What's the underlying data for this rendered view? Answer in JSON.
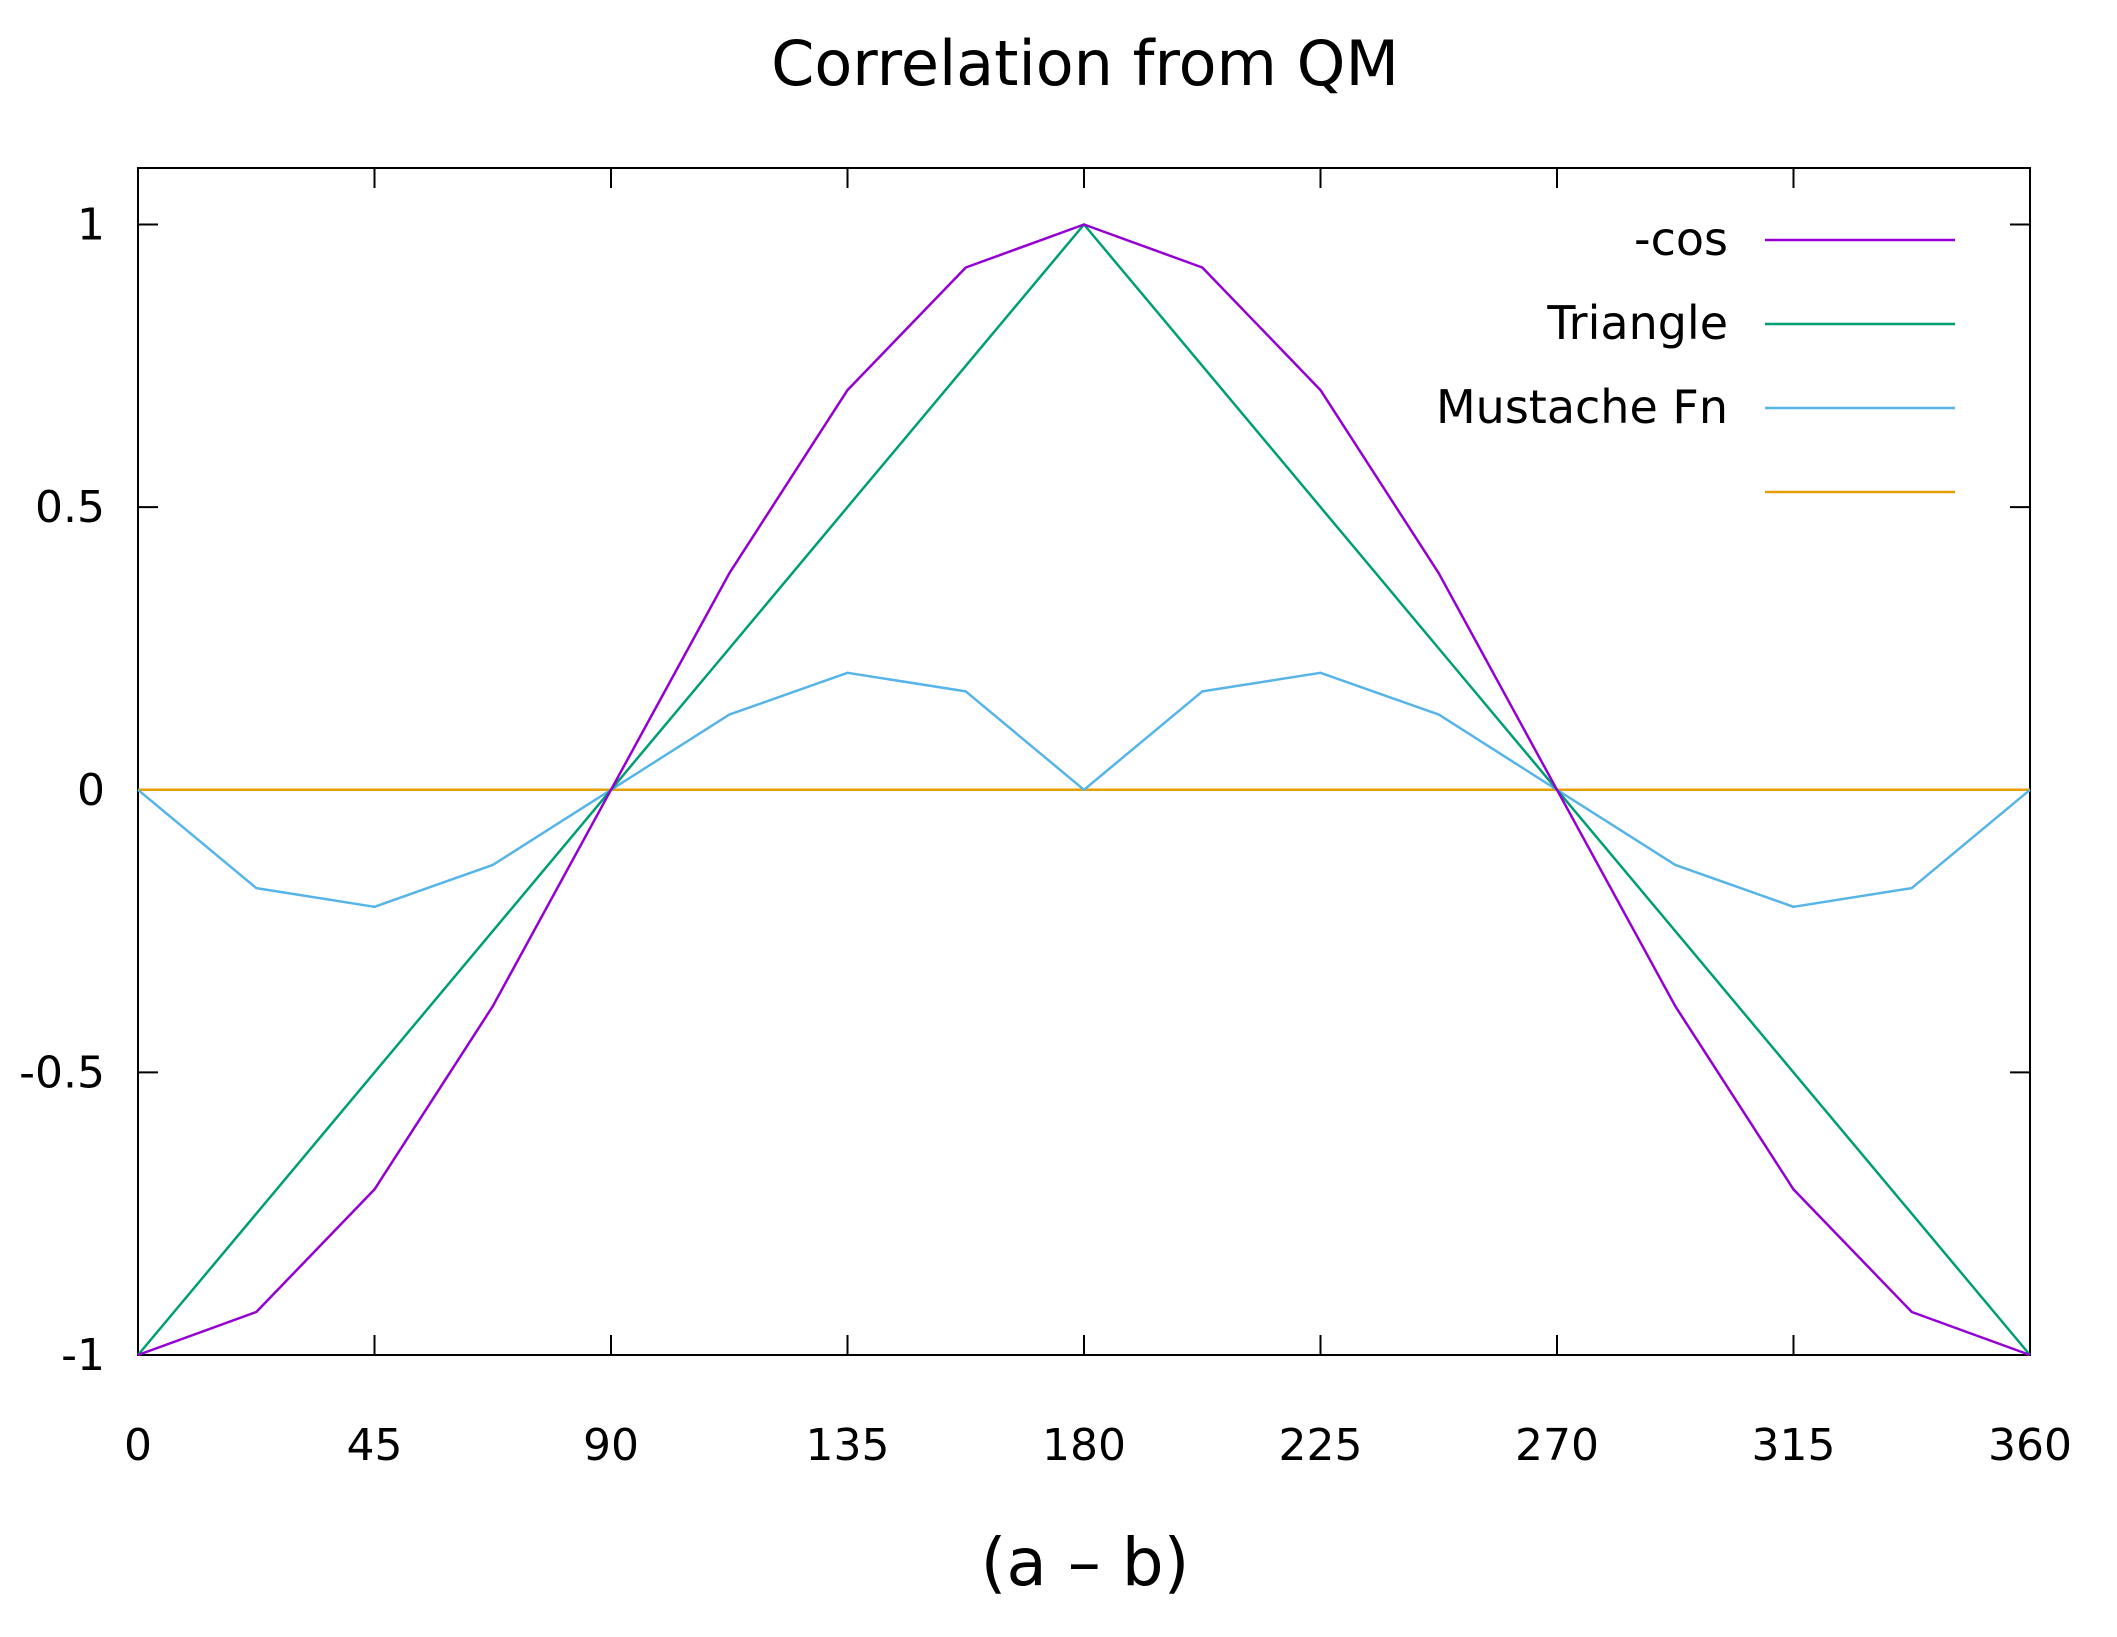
{
  "chart_data": {
    "type": "line",
    "title": "Correlation from QM",
    "xlabel": "(a – b)",
    "ylabel": "",
    "xlim": [
      0,
      360
    ],
    "ylim": [
      -1,
      1.1
    ],
    "xticks": [
      0,
      45,
      90,
      135,
      180,
      225,
      270,
      315,
      360
    ],
    "xtick_labels": [
      "0",
      "45",
      "90",
      "135",
      "180",
      "225",
      "270",
      "315",
      "360"
    ],
    "yticks": [
      1,
      0.5,
      0,
      -0.5,
      -1
    ],
    "ytick_labels": [
      "1",
      "0.5",
      "0",
      "-0.5",
      "-1"
    ],
    "grid": false,
    "legend_position": "top-right",
    "x": [
      0,
      22.5,
      45,
      67.5,
      90,
      112.5,
      135,
      157.5,
      180,
      202.5,
      225,
      247.5,
      270,
      292.5,
      315,
      337.5,
      360
    ],
    "series": [
      {
        "name": "-cos",
        "color": "#9400d3",
        "values": [
          -1,
          -0.924,
          -0.707,
          -0.383,
          0,
          0.383,
          0.707,
          0.924,
          1,
          0.924,
          0.707,
          0.383,
          0,
          -0.383,
          -0.707,
          -0.924,
          -1
        ]
      },
      {
        "name": "Triangle",
        "color": "#009e73",
        "values": [
          -1,
          -0.75,
          -0.5,
          -0.25,
          0,
          0.25,
          0.5,
          0.75,
          1,
          0.75,
          0.5,
          0.25,
          0,
          -0.25,
          -0.5,
          -0.75,
          -1
        ]
      },
      {
        "name": "Mustache Fn",
        "color": "#56b4e9",
        "values": [
          0,
          -0.174,
          -0.207,
          -0.133,
          0,
          0.133,
          0.207,
          0.174,
          0,
          0.174,
          0.207,
          0.133,
          0,
          -0.133,
          -0.207,
          -0.174,
          0
        ]
      },
      {
        "name": "",
        "color": "#e69f00",
        "values": [
          0,
          0,
          0,
          0,
          0,
          0,
          0,
          0,
          0,
          0,
          0,
          0,
          0,
          0,
          0,
          0,
          0
        ]
      }
    ]
  }
}
